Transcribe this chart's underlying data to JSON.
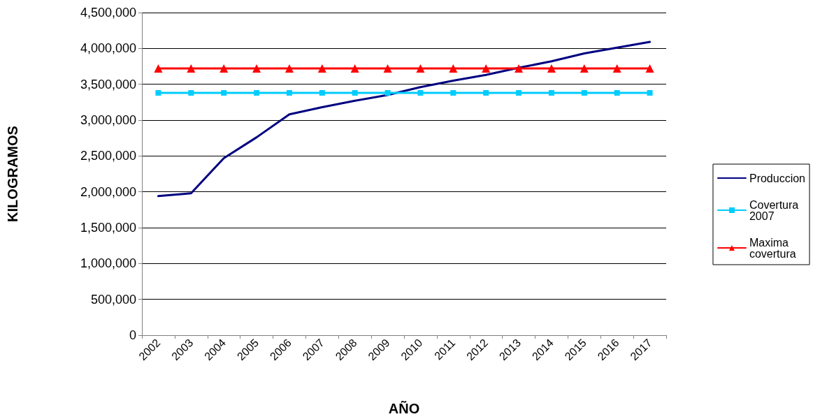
{
  "chart_data": {
    "type": "line",
    "xlabel": "AÑO",
    "ylabel": "KILOGRAMOS",
    "categories": [
      "2002",
      "2003",
      "2004",
      "2005",
      "2006",
      "2007",
      "2008",
      "2009",
      "2010",
      "2011",
      "2012",
      "2013",
      "2014",
      "2015",
      "2016",
      "2017"
    ],
    "series": [
      {
        "name": "Produccion",
        "color": "#000080",
        "marker": "none",
        "values": [
          1940000,
          1980000,
          2470000,
          2760000,
          3080000,
          3180000,
          3270000,
          3350000,
          3460000,
          3550000,
          3630000,
          3730000,
          3820000,
          3930000,
          4010000,
          4090000
        ]
      },
      {
        "name": "Covertura 2007",
        "color": "#00ccff",
        "marker": "square",
        "values": [
          3380000,
          3380000,
          3380000,
          3380000,
          3380000,
          3380000,
          3380000,
          3380000,
          3380000,
          3380000,
          3380000,
          3380000,
          3380000,
          3380000,
          3380000,
          3380000
        ]
      },
      {
        "name": "Maxima covertura",
        "color": "#ff0000",
        "marker": "triangle",
        "values": [
          3720000,
          3720000,
          3720000,
          3720000,
          3720000,
          3720000,
          3720000,
          3720000,
          3720000,
          3720000,
          3720000,
          3720000,
          3720000,
          3720000,
          3720000,
          3720000
        ]
      }
    ],
    "ylim": [
      0,
      4500000
    ],
    "yticks": [
      0,
      {
        "value": 500000,
        "label": "500,000"
      },
      {
        "value": 1000000,
        "label": "1,000,000"
      },
      {
        "value": 1500000,
        "label": "1,500,000"
      },
      {
        "value": 2000000,
        "label": "2,000,000"
      },
      {
        "value": 2500000,
        "label": "2,500,000"
      },
      {
        "value": 3000000,
        "label": "3,000,000"
      },
      {
        "value": 3500000,
        "label": "3,500,000"
      },
      {
        "value": 4000000,
        "label": "4,000,000"
      },
      {
        "value": 4500000,
        "label": "4,500,000"
      }
    ],
    "grid": "y",
    "legend": "right",
    "line_style": "solid"
  }
}
